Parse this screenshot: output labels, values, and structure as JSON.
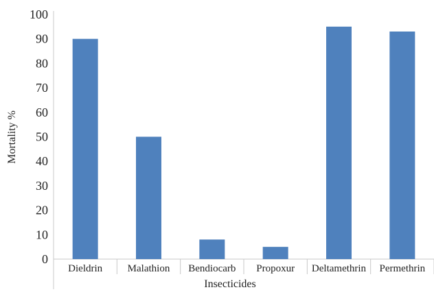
{
  "chart_data": {
    "type": "bar",
    "categories": [
      "Dieldrin",
      "Malathion",
      "Bendiocarb",
      "Propoxur",
      "Deltamethrin",
      "Permethrin"
    ],
    "values": [
      90,
      50,
      8,
      5,
      95,
      93
    ],
    "title": "",
    "xlabel": "Insecticides",
    "ylabel": "Mortality %",
    "ylim": [
      0,
      100
    ],
    "yticks": [
      "0",
      "10",
      "20",
      "30",
      "40",
      "50",
      "60",
      "70",
      "80",
      "90",
      "100"
    ],
    "grid": false,
    "legend": "none",
    "bar_color": "#4f81bd"
  }
}
